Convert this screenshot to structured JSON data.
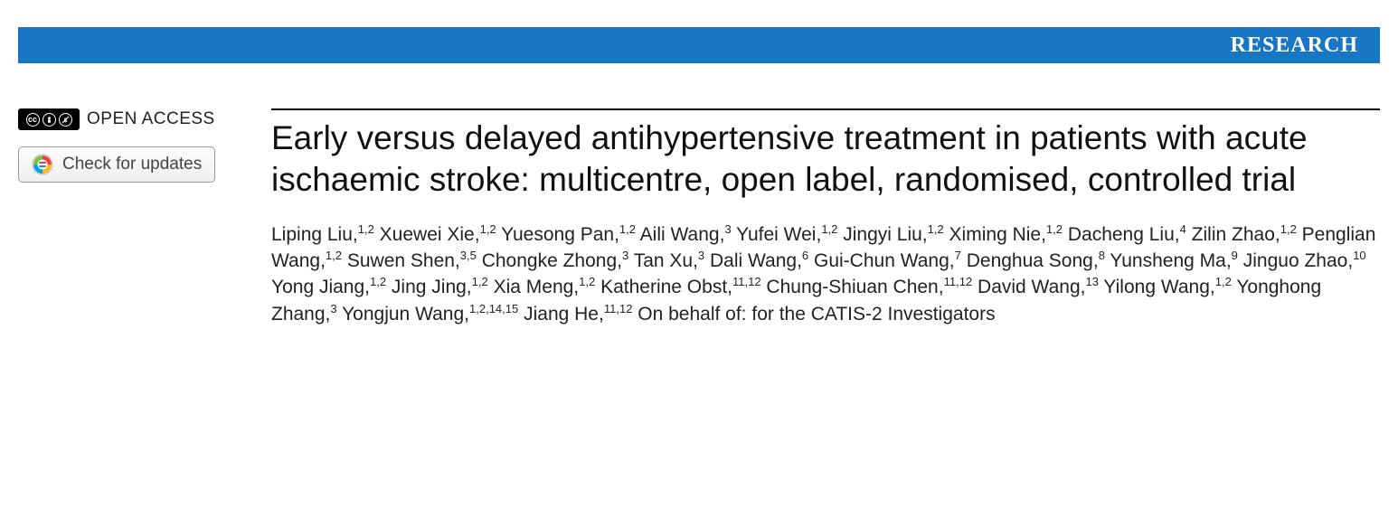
{
  "banner": {
    "label": "RESEARCH",
    "background_color": "#1976c4",
    "text_color": "#ffffff"
  },
  "open_access": {
    "label": "OPEN ACCESS",
    "text_color": "#222222",
    "cc_badge_bg": "#000000"
  },
  "updates_button": {
    "label": "Check for updates"
  },
  "article": {
    "title": "Early versus delayed antihypertensive treatment in patients with acute ischaemic stroke: multicentre, open label, randomised, controlled trial",
    "title_color": "#111111",
    "rule_color": "#000000",
    "authors": [
      {
        "name": "Liping Liu",
        "aff": "1,2"
      },
      {
        "name": "Xuewei Xie",
        "aff": "1,2"
      },
      {
        "name": "Yuesong Pan",
        "aff": "1,2"
      },
      {
        "name": "Aili Wang",
        "aff": "3"
      },
      {
        "name": "Yufei Wei",
        "aff": "1,2"
      },
      {
        "name": "Jingyi Liu",
        "aff": "1,2"
      },
      {
        "name": "Ximing Nie",
        "aff": "1,2"
      },
      {
        "name": "Dacheng Liu",
        "aff": "4"
      },
      {
        "name": "Zilin Zhao",
        "aff": "1,2"
      },
      {
        "name": "Penglian Wang",
        "aff": "1,2"
      },
      {
        "name": "Suwen Shen",
        "aff": "3,5"
      },
      {
        "name": "Chongke Zhong",
        "aff": "3"
      },
      {
        "name": "Tan Xu",
        "aff": "3"
      },
      {
        "name": "Dali Wang",
        "aff": "6"
      },
      {
        "name": "Gui-Chun Wang",
        "aff": "7"
      },
      {
        "name": "Denghua Song",
        "aff": "8"
      },
      {
        "name": "Yunsheng Ma",
        "aff": "9"
      },
      {
        "name": "Jinguo Zhao",
        "aff": "10"
      },
      {
        "name": "Yong Jiang",
        "aff": "1,2"
      },
      {
        "name": "Jing Jing",
        "aff": "1,2"
      },
      {
        "name": "Xia Meng",
        "aff": "1,2"
      },
      {
        "name": "Katherine Obst",
        "aff": "11,12"
      },
      {
        "name": "Chung-Shiuan Chen",
        "aff": "11,12"
      },
      {
        "name": "David Wang",
        "aff": "13"
      },
      {
        "name": "Yilong Wang",
        "aff": "1,2"
      },
      {
        "name": "Yonghong Zhang",
        "aff": "3"
      },
      {
        "name": "Yongjun Wang",
        "aff": "1,2,14,15"
      },
      {
        "name": "Jiang He",
        "aff": "11,12"
      }
    ],
    "authors_suffix": "On behalf of: for the CATIS-2 Investigators"
  }
}
